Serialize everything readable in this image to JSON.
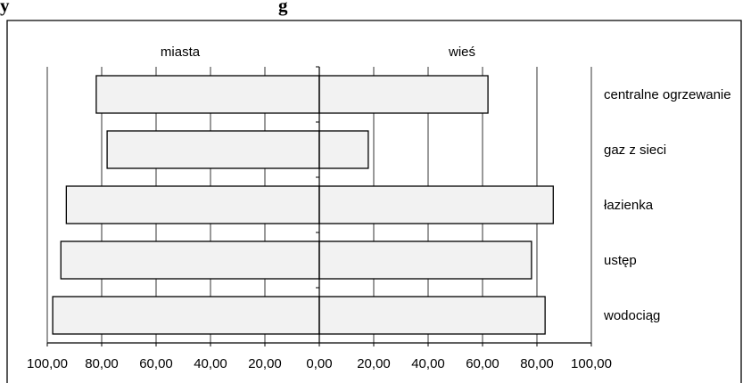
{
  "chart_data": {
    "type": "bar",
    "orientation": "horizontal",
    "layout": "diverging",
    "title_fragment_left": "y",
    "title_fragment_right": "g",
    "categories": [
      "centralne ogrzewanie",
      "gaz z sieci",
      "łazienka",
      "ustęp",
      "wodociąg"
    ],
    "series": [
      {
        "name": "miasta",
        "direction": "left",
        "values": [
          82,
          78,
          93,
          95,
          98
        ]
      },
      {
        "name": "wieś",
        "direction": "right",
        "values": [
          62,
          18,
          86,
          78,
          83
        ]
      }
    ],
    "x_tick_labels": [
      "100,00",
      "80,00",
      "60,00",
      "40,00",
      "20,00",
      "0,00",
      "20,00",
      "40,00",
      "60,00",
      "80,00",
      "100,00"
    ],
    "xlim": [
      -100,
      100
    ],
    "grid": true,
    "bar_fill": "#f2f2f2",
    "bar_stroke": "#000000",
    "grid_color": "#000000"
  }
}
